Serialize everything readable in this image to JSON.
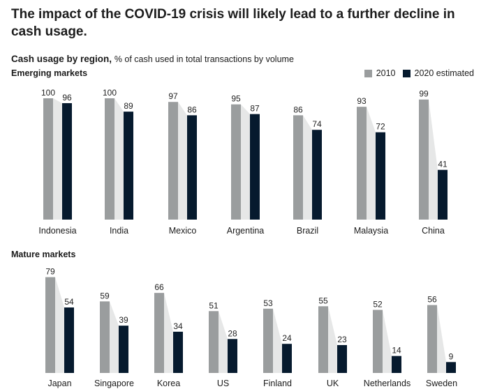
{
  "title": "The impact of the COVID-19 crisis will likely lead to a further decline in cash usage.",
  "subtitle": {
    "strong": "Cash usage by region,",
    "unit": "% of cash used in total transactions by volume"
  },
  "legend": {
    "placement": "top-right",
    "items": [
      {
        "label": "2010",
        "color": "#9a9d9e"
      },
      {
        "label": "2020 estimated",
        "color": "#061a2e"
      }
    ]
  },
  "colors": {
    "bar_2010": "#9a9d9e",
    "bar_2020": "#061a2e",
    "connector": "#e6e7e7"
  },
  "chart_data": [
    {
      "type": "bar",
      "title": "Emerging markets",
      "ylim": [
        0,
        100
      ],
      "categories": [
        "Indonesia",
        "India",
        "Mexico",
        "Argentina",
        "Brazil",
        "Malaysia",
        "China"
      ],
      "series": [
        {
          "name": "2010",
          "values": [
            100,
            100,
            97,
            95,
            86,
            93,
            99
          ]
        },
        {
          "name": "2020 estimated",
          "values": [
            96,
            89,
            86,
            87,
            74,
            72,
            41
          ]
        }
      ]
    },
    {
      "type": "bar",
      "title": "Mature markets",
      "ylim": [
        0,
        100
      ],
      "categories": [
        "Japan",
        "Singapore",
        "Korea",
        "US",
        "Finland",
        "UK",
        "Netherlands",
        "Sweden"
      ],
      "series": [
        {
          "name": "2010",
          "values": [
            79,
            59,
            66,
            51,
            53,
            55,
            52,
            56
          ]
        },
        {
          "name": "2020 estimated",
          "values": [
            54,
            39,
            34,
            28,
            24,
            23,
            14,
            9
          ]
        }
      ]
    }
  ]
}
